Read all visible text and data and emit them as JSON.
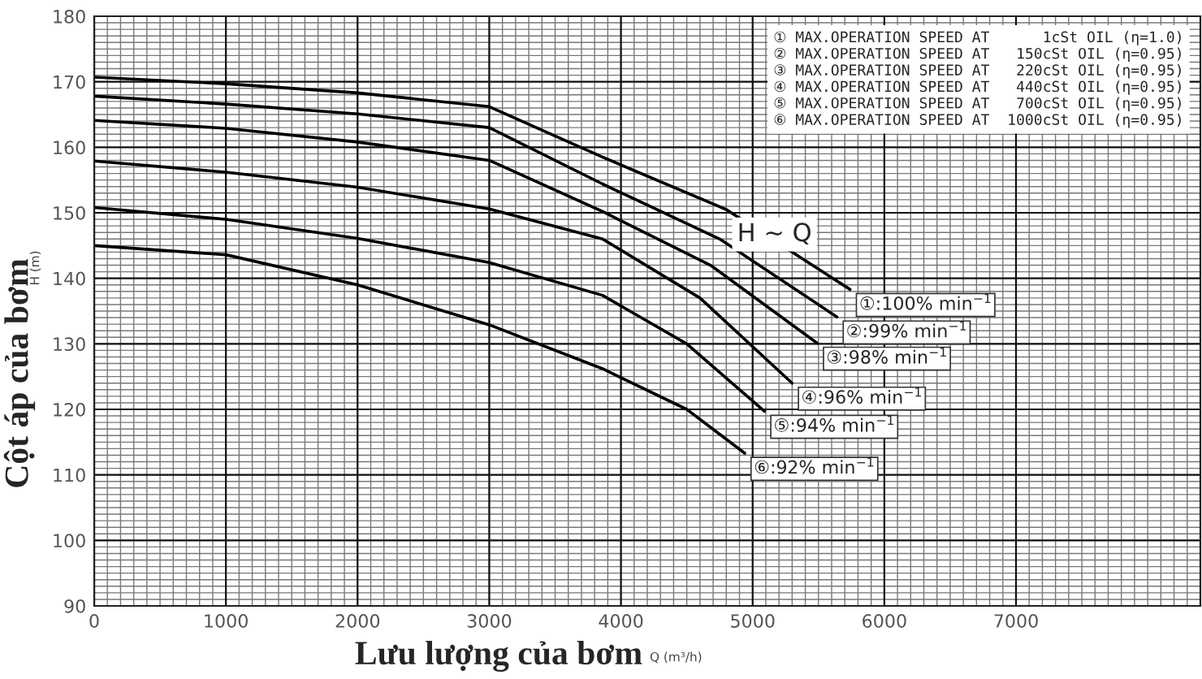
{
  "chart_data": {
    "type": "line",
    "xlabel": "Lưu lượng của bơm",
    "ylabel": "Cột áp của bơm",
    "xlim": [
      0,
      8400
    ],
    "ylim": [
      90,
      180
    ],
    "xticks": [
      0,
      1000,
      2000,
      3000,
      4000,
      5000,
      6000,
      7000
    ],
    "yticks": [
      90,
      100,
      110,
      120,
      130,
      140,
      150,
      160,
      170,
      180
    ],
    "grid": true,
    "legend": false,
    "marker": "none",
    "line_style": "solid",
    "annotations": [
      "① MAX.OPERATION SPEED AT      1cSt OIL (η=1.0)\n② MAX.OPERATION SPEED AT   150cSt OIL (η=0.95)\n③ MAX.OPERATION SPEED AT   220cSt OIL (η=0.95)\n④ MAX.OPERATION SPEED AT   440cSt OIL (η=0.95)\n⑤ MAX.OPERATION SPEED AT   700cSt OIL (η=0.95)\n⑥ MAX.OPERATION SPEED AT  1000cSt OIL (η=0.95)",
      "H ~ Q",
      "H (m)",
      "Q (m³/h)"
    ],
    "series": [
      {
        "name": "①:100% min$^{−1}$",
        "color": "#000000",
        "x": [
          0,
          1000,
          2000,
          3000,
          3860,
          4800,
          5740
        ],
        "values": [
          170.7,
          169.7,
          168.3,
          166.2,
          158.5,
          150.5,
          138.3
        ]
      },
      {
        "name": "②:99% min$^{−1}$",
        "color": "#000000",
        "x": [
          0,
          1000,
          2000,
          3000,
          3860,
          4750,
          5640
        ],
        "values": [
          167.8,
          166.6,
          165.1,
          163,
          154.4,
          146,
          134.1
        ]
      },
      {
        "name": "③:98% min$^{−1}$",
        "color": "#000000",
        "x": [
          0,
          1000,
          2000,
          3000,
          3860,
          4680,
          5490
        ],
        "values": [
          164.1,
          162.9,
          160.8,
          158,
          150.2,
          142,
          130.1
        ]
      },
      {
        "name": "④:96% min$^{−1}$",
        "color": "#000000",
        "x": [
          0,
          1000,
          2000,
          3000,
          3860,
          4600,
          5300
        ],
        "values": [
          157.9,
          156.2,
          153.9,
          150.6,
          146,
          137,
          124
        ]
      },
      {
        "name": "⑤:94% min$^{−1}$",
        "color": "#000000",
        "x": [
          0,
          1000,
          2000,
          3000,
          3860,
          4500,
          5090
        ],
        "values": [
          150.8,
          149,
          146.1,
          142.4,
          137.4,
          130,
          119.7
        ]
      },
      {
        "name": "⑥:92% min$^{−1}$",
        "color": "#000000",
        "x": [
          0,
          1000,
          2000,
          3000,
          3860,
          4500,
          4940
        ],
        "values": [
          145,
          143.6,
          139,
          132.9,
          126.2,
          120,
          113.3
        ]
      }
    ]
  }
}
